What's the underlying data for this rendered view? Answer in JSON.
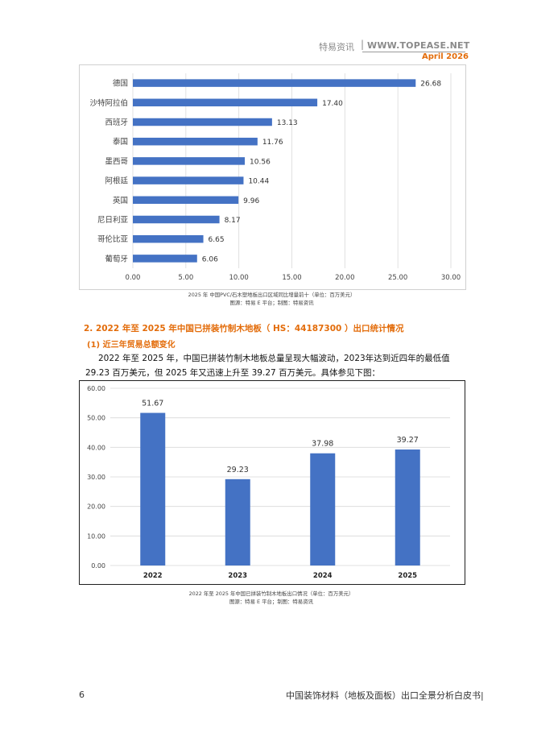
{
  "header": {
    "brand": "特易资讯",
    "separator": "|",
    "site": "WWW.TOPEASE.NET",
    "date": "April 2026"
  },
  "chart_data": [
    {
      "type": "bar",
      "orientation": "horizontal",
      "categories": [
        "德国",
        "沙特阿拉伯",
        "西班牙",
        "泰国",
        "墨西哥",
        "阿根廷",
        "英国",
        "尼日利亚",
        "哥伦比亚",
        "葡萄牙"
      ],
      "values": [
        26.68,
        17.4,
        13.13,
        11.76,
        10.56,
        10.44,
        9.96,
        8.17,
        6.65,
        6.06
      ],
      "value_labels": [
        "26.68",
        "17.40",
        "13.13",
        "11.76",
        "10.56",
        "10.44",
        "9.96",
        "8.17",
        "6.65",
        "6.06"
      ],
      "xlim": [
        0,
        30
      ],
      "ticks": [
        "0.00",
        "5.00",
        "10.00",
        "15.00",
        "20.00",
        "25.00",
        "30.00"
      ],
      "grid": true,
      "color": "#4472c4",
      "caption": "2025  年 中国PVC/石木塑地板出口区域同比增量前十（单位：百万美元）",
      "source": "图源：特易   E  平台；制图：特易资讯"
    },
    {
      "type": "bar",
      "categories": [
        "2022",
        "2023",
        "2024",
        "2025"
      ],
      "values": [
        51.67,
        29.23,
        37.98,
        39.27
      ],
      "value_labels": [
        "51.67",
        "29.23",
        "37.98",
        "39.27"
      ],
      "ylim": [
        0,
        60
      ],
      "ticks": [
        "0.00",
        "10.00",
        "20.00",
        "30.00",
        "40.00",
        "50.00",
        "60.00"
      ],
      "grid": true,
      "color": "#4472c4",
      "caption": "2022   年至  2025  年中国已拼装竹制木地板出口情况（单位：百万美元）",
      "source": "图源：特易   E  平台；制图：特易资讯"
    }
  ],
  "section": {
    "title": "2.  2022  年至  2025  年中国已拼装竹制木地板（ HS：44187300 ）出口统计情况",
    "subtitle": "(1)  近三年贸易总额变化",
    "paragraph": "2022  年至  2025 年，中国已拼装竹制木地板总量呈现大幅波动，2023年达到近四年的最低值29.23 百万美元，但 2025 年又迅速上升至 39.27 百万美元。具体参见下图："
  },
  "footer": {
    "page_number": "6",
    "doc_title": "中国装饰材料（地板及面板）出口全景分析白皮书|"
  }
}
